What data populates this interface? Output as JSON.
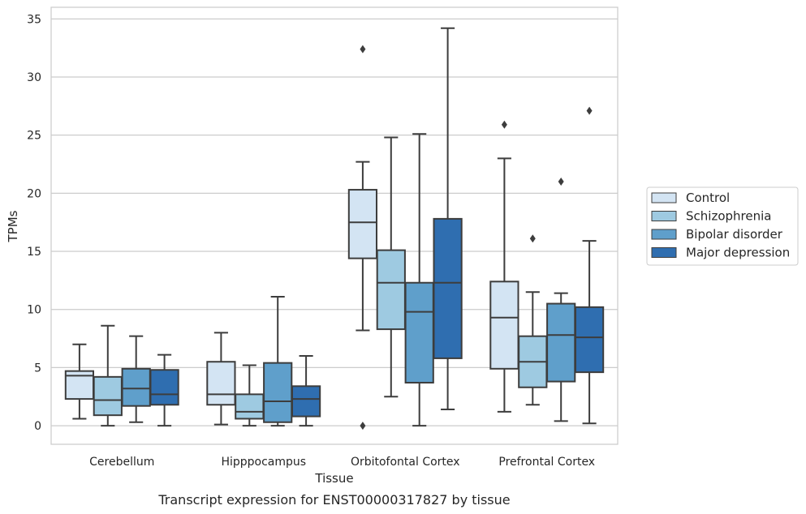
{
  "chart_data": {
    "type": "box",
    "title": "Transcript expression for ENST00000317827 by tissue",
    "xlabel": "Tissue",
    "ylabel": "TPMs",
    "ylim": [
      -1.6,
      36
    ],
    "yticks": [
      0,
      5,
      10,
      15,
      20,
      25,
      30,
      35
    ],
    "grid": true,
    "legend_position": "right",
    "categories": [
      "Cerebellum",
      "Hipppocampus",
      "Orbitofontal Cortex",
      "Prefrontal Cortex"
    ],
    "series": [
      {
        "name": "Control",
        "color": "#d3e4f3",
        "boxes": [
          {
            "whislo": 0.6,
            "q1": 2.3,
            "med": 4.3,
            "q3": 4.7,
            "whishi": 7.0,
            "fliers": []
          },
          {
            "whislo": 0.1,
            "q1": 1.8,
            "med": 2.7,
            "q3": 5.5,
            "whishi": 8.0,
            "fliers": []
          },
          {
            "whislo": 8.2,
            "q1": 14.4,
            "med": 17.5,
            "q3": 20.3,
            "whishi": 22.7,
            "fliers": [
              32.4,
              0.0
            ]
          },
          {
            "whislo": 1.2,
            "q1": 4.9,
            "med": 9.3,
            "q3": 12.4,
            "whishi": 23.0,
            "fliers": [
              25.9
            ]
          }
        ]
      },
      {
        "name": "Schizophrenia",
        "color": "#9ecae1",
        "boxes": [
          {
            "whislo": 0.0,
            "q1": 0.9,
            "med": 2.2,
            "q3": 4.2,
            "whishi": 8.6,
            "fliers": []
          },
          {
            "whislo": 0.0,
            "q1": 0.6,
            "med": 1.2,
            "q3": 2.7,
            "whishi": 5.2,
            "fliers": []
          },
          {
            "whislo": 2.5,
            "q1": 8.3,
            "med": 12.3,
            "q3": 15.1,
            "whishi": 24.8,
            "fliers": []
          },
          {
            "whislo": 1.8,
            "q1": 3.3,
            "med": 5.5,
            "q3": 7.7,
            "whishi": 11.5,
            "fliers": [
              16.1
            ]
          }
        ]
      },
      {
        "name": "Bipolar disorder",
        "color": "#5f9fcb",
        "boxes": [
          {
            "whislo": 0.3,
            "q1": 1.7,
            "med": 3.2,
            "q3": 4.9,
            "whishi": 7.7,
            "fliers": []
          },
          {
            "whislo": 0.0,
            "q1": 0.3,
            "med": 2.1,
            "q3": 5.4,
            "whishi": 11.1,
            "fliers": []
          },
          {
            "whislo": 0.0,
            "q1": 3.7,
            "med": 9.8,
            "q3": 12.3,
            "whishi": 25.1,
            "fliers": []
          },
          {
            "whislo": 0.4,
            "q1": 3.8,
            "med": 7.8,
            "q3": 10.5,
            "whishi": 11.4,
            "fliers": [
              21.0
            ]
          }
        ]
      },
      {
        "name": "Major depression",
        "color": "#2f6eb0",
        "boxes": [
          {
            "whislo": 0.0,
            "q1": 1.8,
            "med": 2.7,
            "q3": 4.8,
            "whishi": 6.1,
            "fliers": []
          },
          {
            "whislo": 0.0,
            "q1": 0.8,
            "med": 2.3,
            "q3": 3.4,
            "whishi": 6.0,
            "fliers": []
          },
          {
            "whislo": 1.4,
            "q1": 5.8,
            "med": 12.3,
            "q3": 17.8,
            "whishi": 34.2,
            "fliers": []
          },
          {
            "whislo": 0.2,
            "q1": 4.6,
            "med": 7.6,
            "q3": 10.2,
            "whishi": 15.9,
            "fliers": [
              27.1
            ]
          }
        ]
      }
    ]
  }
}
